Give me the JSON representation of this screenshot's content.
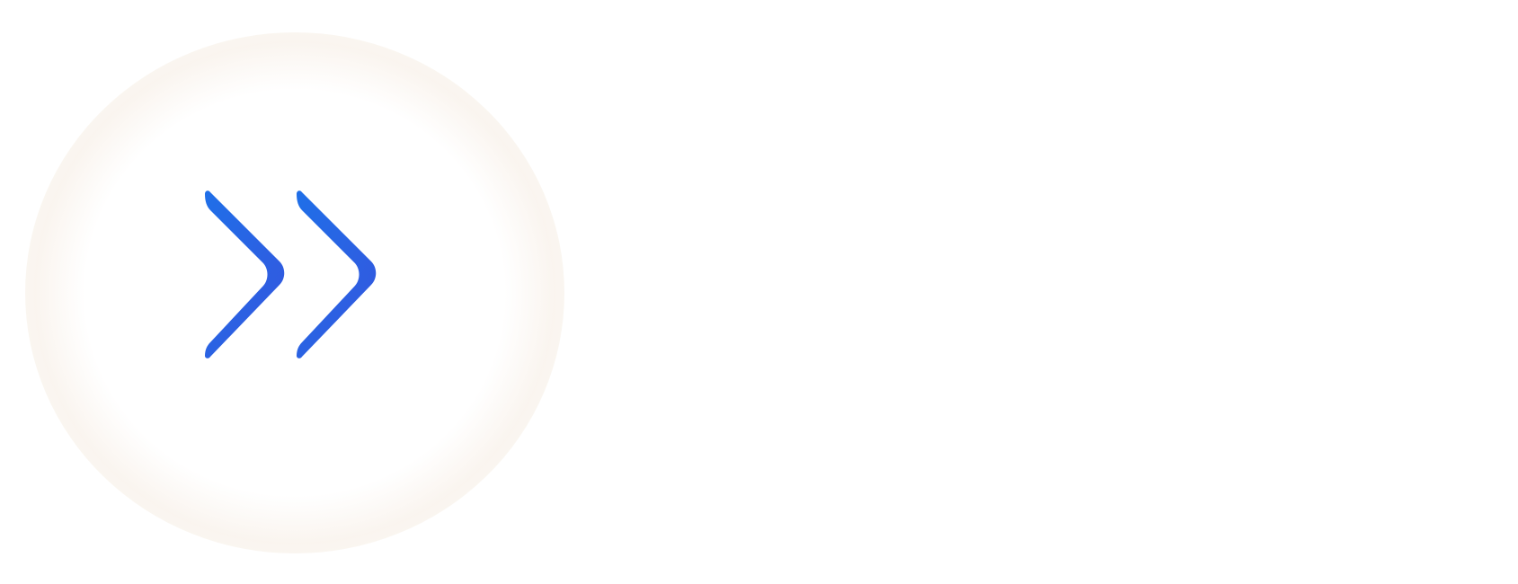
{
  "fast_forward_button": {
    "icon": "double-chevron-right-icon",
    "accent_color_start": "#1f6fe8",
    "accent_color_end": "#3556de",
    "halo_color": "#f6ece2"
  }
}
